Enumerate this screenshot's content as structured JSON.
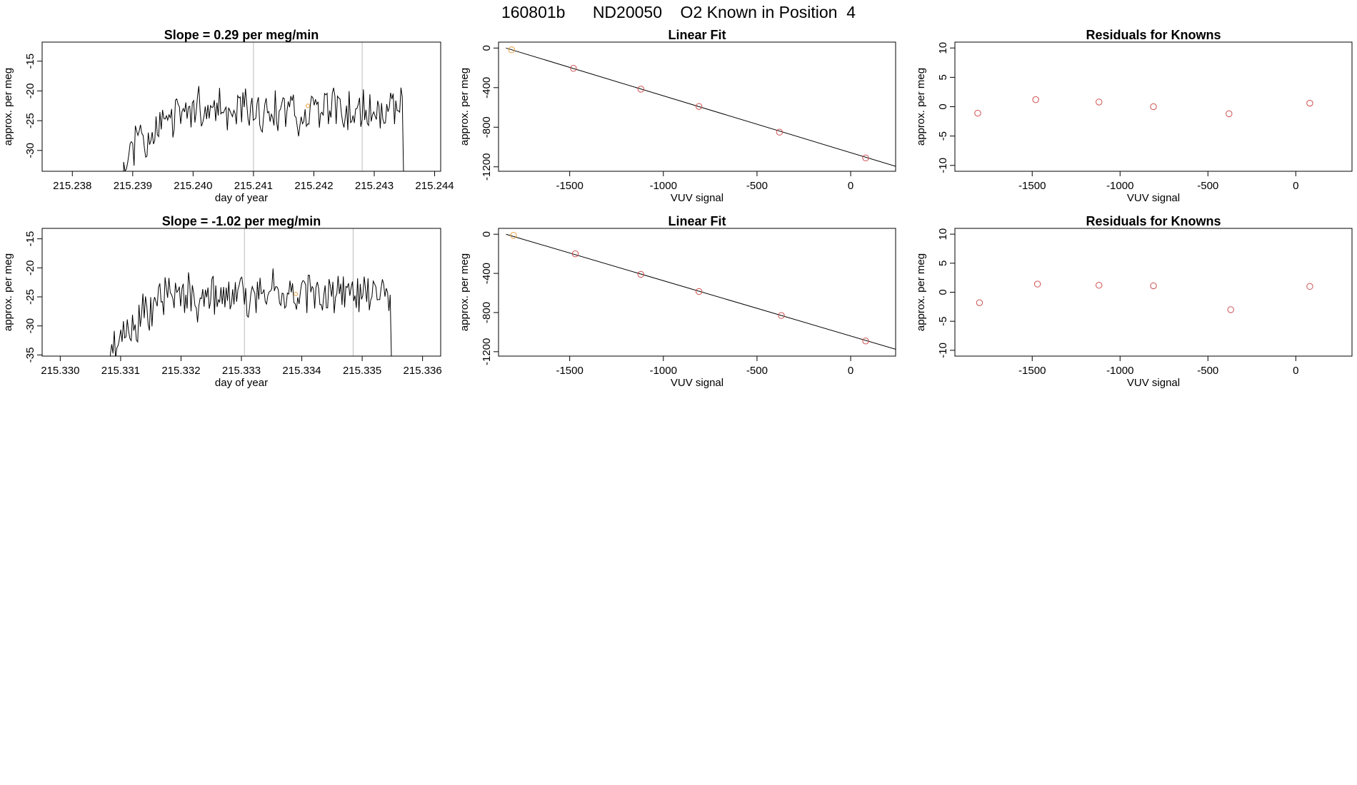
{
  "page": {
    "title": "160801b      ND20050    O2 Known in Position  4"
  },
  "colors": {
    "trace": "#000000",
    "point": "#d05050",
    "highlight": "#e8a040",
    "vline": "#bbbbbb",
    "frame": "#000000"
  },
  "chart_data": [
    {
      "id": "ts1",
      "type": "line",
      "title": "Slope =  0.29  per meg/min",
      "xlabel": "day of year",
      "ylabel": "approx. per meg",
      "xlim": [
        215.2375,
        215.2441
      ],
      "ylim": [
        -33.5,
        -11.8
      ],
      "xticks": [
        215.238,
        215.239,
        215.24,
        215.241,
        215.242,
        215.243,
        215.244
      ],
      "xtick_labels": [
        "215.238",
        "215.239",
        "215.240",
        "215.241",
        "215.242",
        "215.243",
        "215.244"
      ],
      "yticks": [
        -30,
        -25,
        -20,
        -15
      ],
      "ytick_labels": [
        "-30",
        "-25",
        "-20",
        "-15"
      ],
      "vlines": [
        215.241,
        215.2428
      ],
      "series": {
        "x_start": 215.23885,
        "x_end": 215.24355,
        "n": 220,
        "seed": 11,
        "base_level": -23.5,
        "base_amp": 3.2,
        "start_level": -30.5,
        "rise_fraction": 0.05,
        "end_drop": -34.5,
        "highlight_x": 215.2419,
        "highlight_y": -22.5
      }
    },
    {
      "id": "fit1",
      "type": "scatter",
      "title": "Linear Fit",
      "xlabel": "VUV signal",
      "ylabel": "approx. per meg",
      "xlim": [
        -1880,
        240
      ],
      "ylim": [
        -1245,
        60
      ],
      "xticks": [
        -1500,
        -1000,
        -500,
        0
      ],
      "xtick_labels": [
        "-1500",
        "-1000",
        "-500",
        "0"
      ],
      "yticks": [
        -1200,
        -800,
        -400,
        0
      ],
      "ytick_labels": [
        "-1200",
        "-800",
        "-400",
        "0"
      ],
      "points": {
        "x": [
          -1810,
          -1480,
          -1120,
          -810,
          -380,
          80
        ],
        "y": [
          -18,
          -205,
          -415,
          -590,
          -850,
          -1110
        ]
      },
      "highlight_index": 0,
      "fit_line": {
        "x": [
          -1840,
          240
        ],
        "y": [
          0,
          -1195
        ]
      }
    },
    {
      "id": "res1",
      "type": "scatter",
      "title": "Residuals for Knowns",
      "xlabel": "VUV signal",
      "ylabel": "approx. per meg",
      "xlim": [
        -1940,
        320
      ],
      "ylim": [
        -11,
        11
      ],
      "xticks": [
        -1500,
        -1000,
        -500,
        0
      ],
      "xtick_labels": [
        "-1500",
        "-1000",
        "-500",
        "0"
      ],
      "yticks": [
        -10,
        -5,
        0,
        5,
        10
      ],
      "ytick_labels": [
        "-10",
        "-5",
        "0",
        "5",
        "10"
      ],
      "points": {
        "x": [
          -1810,
          -1480,
          -1120,
          -810,
          -380,
          80
        ],
        "y": [
          -1.1,
          1.2,
          0.8,
          0.0,
          -1.2,
          0.6
        ]
      }
    },
    {
      "id": "ts2",
      "type": "line",
      "title": "Slope =  -1.02  per meg/min",
      "xlabel": "day of year",
      "ylabel": "approx. per meg",
      "xlim": [
        215.3297,
        215.3363
      ],
      "ylim": [
        -35.2,
        -13.2
      ],
      "xticks": [
        215.33,
        215.331,
        215.332,
        215.333,
        215.334,
        215.335,
        215.336
      ],
      "xtick_labels": [
        "215.330",
        "215.331",
        "215.332",
        "215.333",
        "215.334",
        "215.335",
        "215.336"
      ],
      "yticks": [
        -35,
        -30,
        -25,
        -20,
        -15
      ],
      "ytick_labels": [
        "-35",
        "-30",
        "-25",
        "-20",
        "-15"
      ],
      "vlines": [
        215.33305,
        215.33485
      ],
      "series": {
        "x_start": 215.33083,
        "x_end": 215.33555,
        "n": 220,
        "seed": 23,
        "base_level": -24.5,
        "base_amp": 3.0,
        "start_level": -33.5,
        "rise_fraction": 0.04,
        "end_drop": -36.0,
        "highlight_x": 215.3339,
        "highlight_y": -24.5
      }
    },
    {
      "id": "fit2",
      "type": "scatter",
      "title": "Linear Fit",
      "xlabel": "VUV signal",
      "ylabel": "approx. per meg",
      "xlim": [
        -1880,
        240
      ],
      "ylim": [
        -1245,
        60
      ],
      "xticks": [
        -1500,
        -1000,
        -500,
        0
      ],
      "xtick_labels": [
        "-1500",
        "-1000",
        "-500",
        "0"
      ],
      "yticks": [
        -1200,
        -800,
        -400,
        0
      ],
      "ytick_labels": [
        "-1200",
        "-800",
        "-400",
        "0"
      ],
      "points": {
        "x": [
          -1800,
          -1470,
          -1120,
          -810,
          -370,
          80
        ],
        "y": [
          -12,
          -200,
          -410,
          -585,
          -830,
          -1090
        ]
      },
      "highlight_index": 0,
      "fit_line": {
        "x": [
          -1840,
          240
        ],
        "y": [
          0,
          -1175
        ]
      }
    },
    {
      "id": "res2",
      "type": "scatter",
      "title": "Residuals for Knowns",
      "xlabel": "VUV signal",
      "ylabel": "approx. per meg",
      "xlim": [
        -1940,
        320
      ],
      "ylim": [
        -11,
        11
      ],
      "xticks": [
        -1500,
        -1000,
        -500,
        0
      ],
      "xtick_labels": [
        "-1500",
        "-1000",
        "-500",
        "0"
      ],
      "yticks": [
        -10,
        -5,
        0,
        5,
        10
      ],
      "ytick_labels": [
        "-10",
        "-5",
        "0",
        "5",
        "10"
      ],
      "points": {
        "x": [
          -1800,
          -1470,
          -1120,
          -810,
          -370,
          80
        ],
        "y": [
          -1.8,
          1.4,
          1.2,
          1.1,
          -3.0,
          1.0
        ]
      }
    }
  ]
}
